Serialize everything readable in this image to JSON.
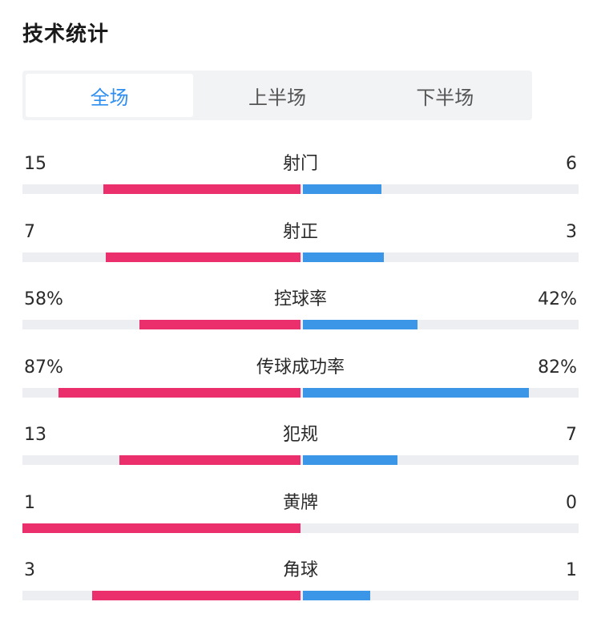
{
  "header": {
    "title": "技术统计"
  },
  "tabs": [
    {
      "label": "全场",
      "active": true
    },
    {
      "label": "上半场",
      "active": false
    },
    {
      "label": "下半场",
      "active": false
    }
  ],
  "colors": {
    "home": "#ea2f6c",
    "away": "#3b96e8",
    "track": "#eceef2",
    "active_tab": "#2f8ff0"
  },
  "stats": [
    {
      "label": "射门",
      "home": "15",
      "away": "6",
      "home_fraction": 0.71,
      "away_fraction": 0.29
    },
    {
      "label": "射正",
      "home": "7",
      "away": "3",
      "home_fraction": 0.7,
      "away_fraction": 0.3
    },
    {
      "label": "控球率",
      "home": "58%",
      "away": "42%",
      "home_fraction": 0.58,
      "away_fraction": 0.42
    },
    {
      "label": "传球成功率",
      "home": "87%",
      "away": "82%",
      "home_fraction": 0.87,
      "away_fraction": 0.82
    },
    {
      "label": "犯规",
      "home": "13",
      "away": "7",
      "home_fraction": 0.65,
      "away_fraction": 0.35
    },
    {
      "label": "黄牌",
      "home": "1",
      "away": "0",
      "home_fraction": 1.0,
      "away_fraction": 0.0
    },
    {
      "label": "角球",
      "home": "3",
      "away": "1",
      "home_fraction": 0.75,
      "away_fraction": 0.25
    }
  ]
}
